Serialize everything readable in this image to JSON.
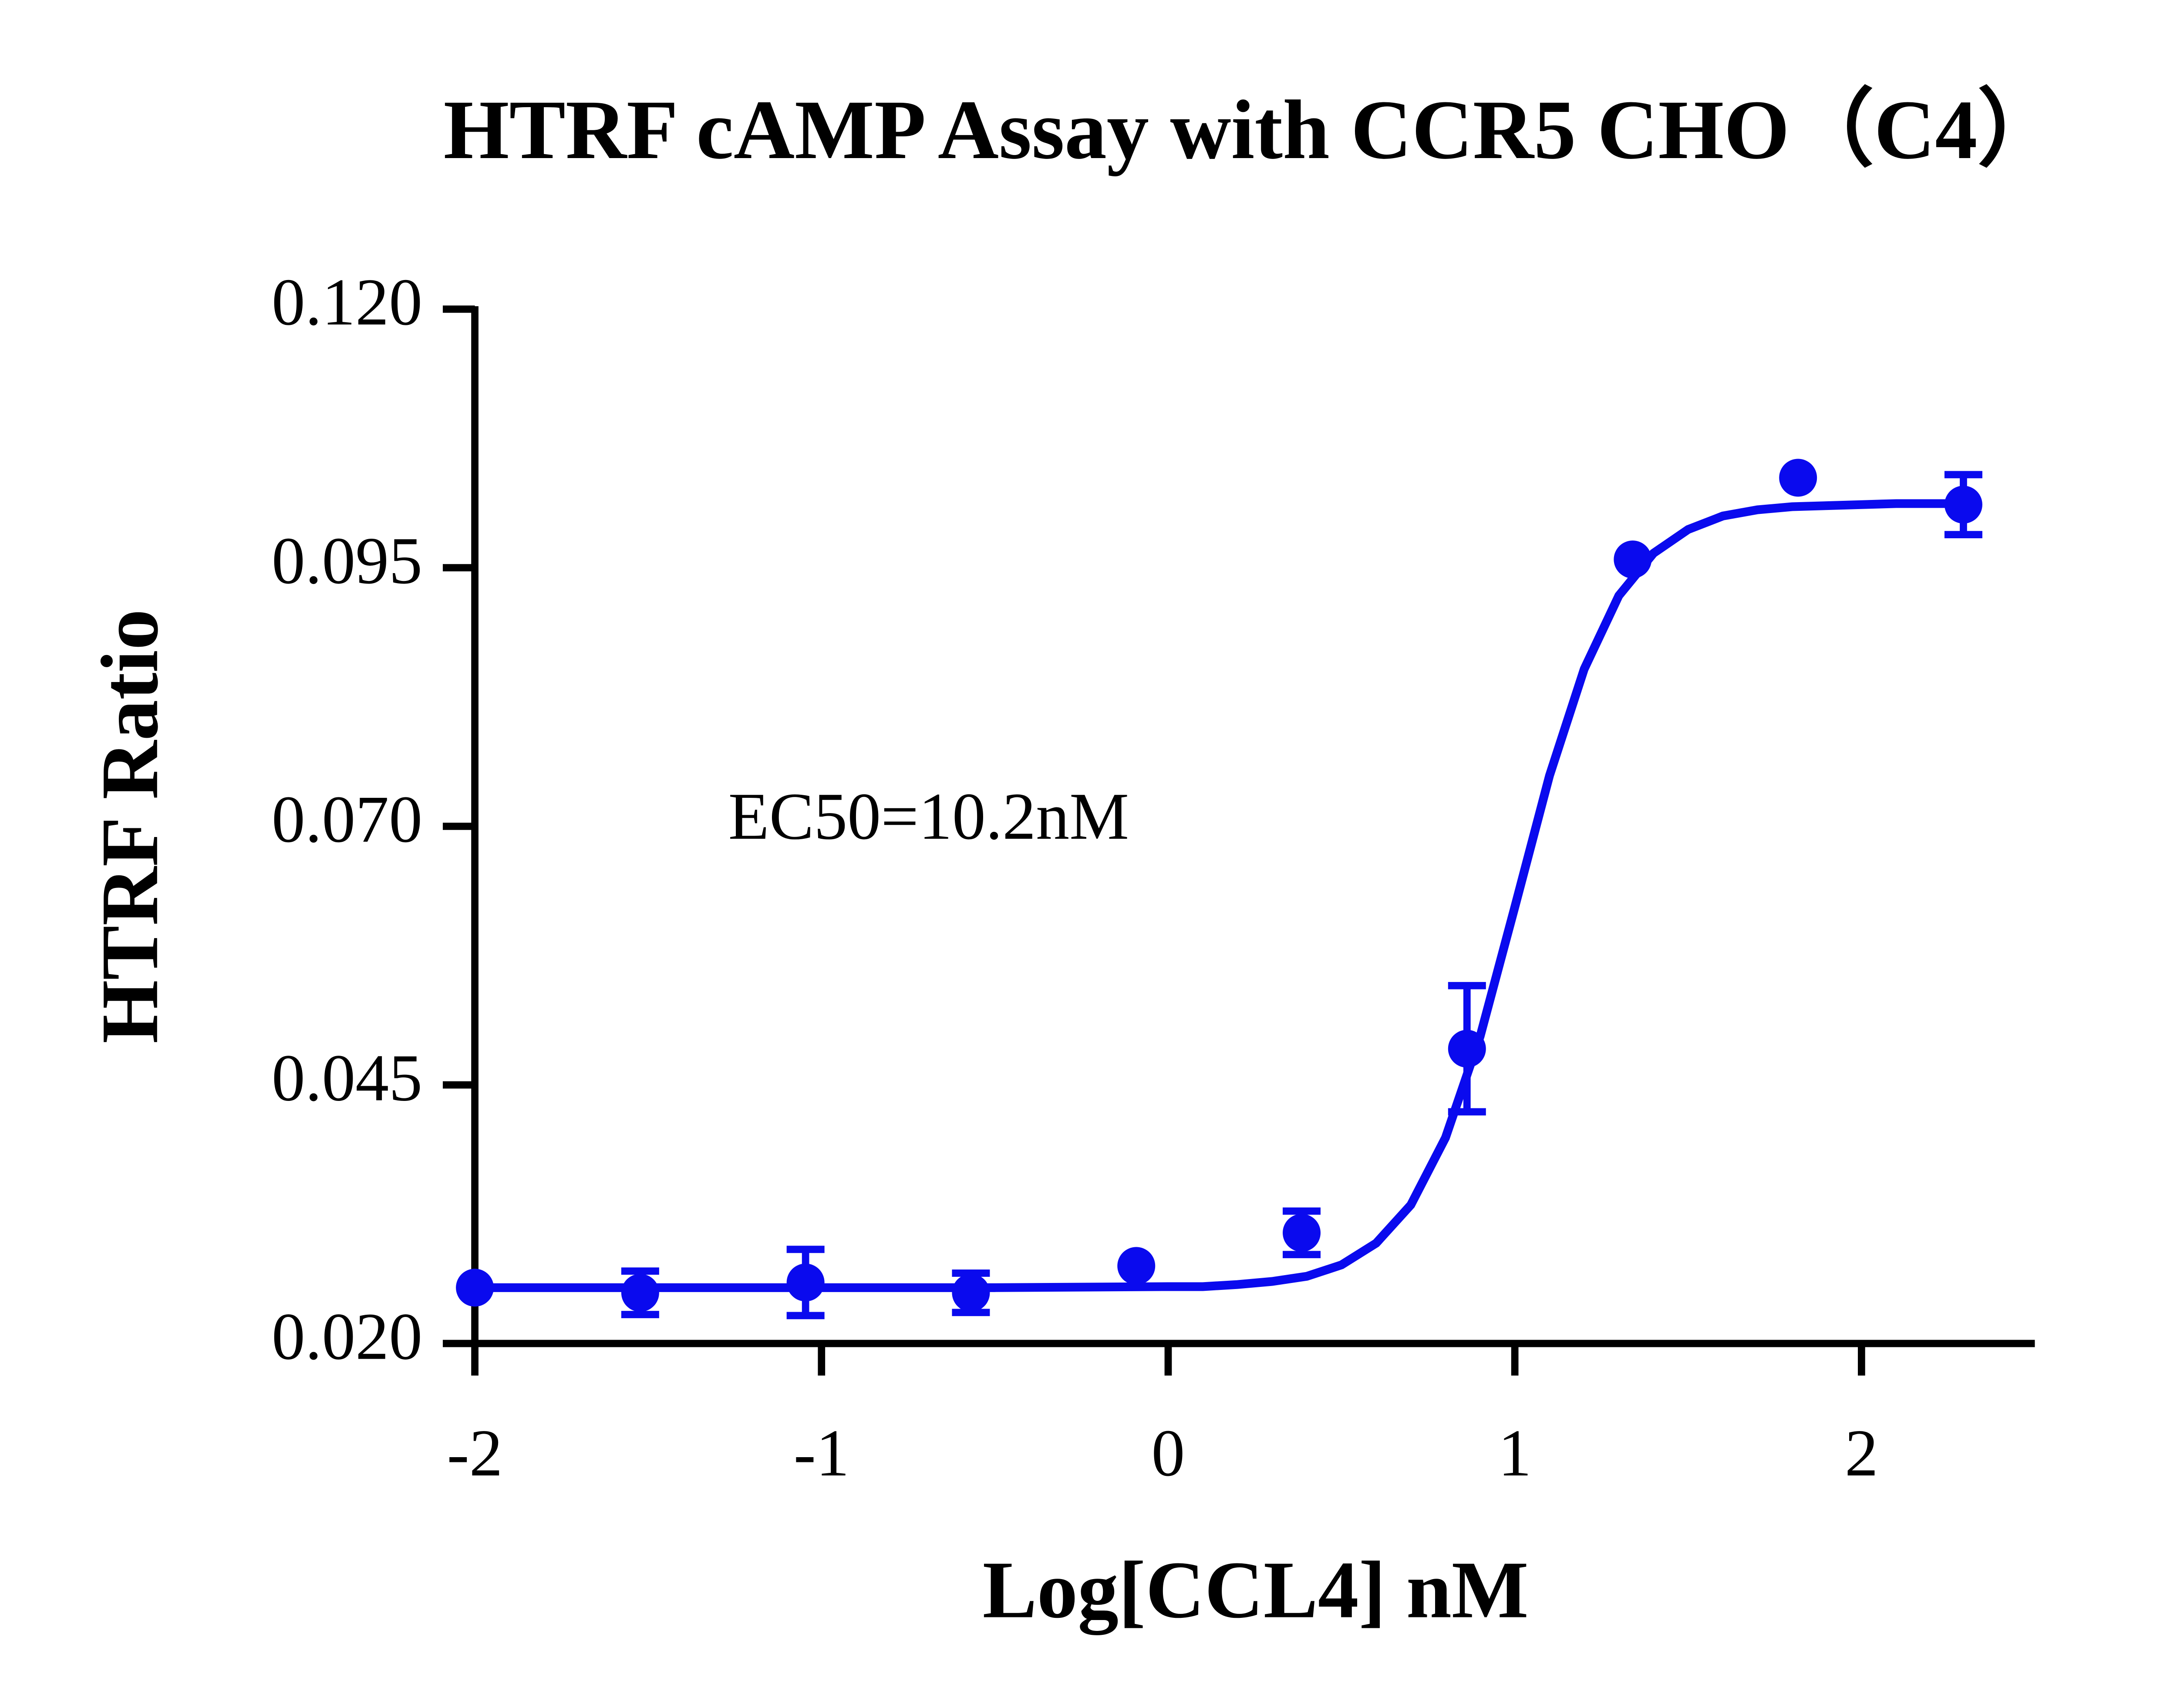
{
  "chart_data": {
    "type": "line",
    "title": "HTRF cAMP Assay with CCR5 CHO（C4）",
    "x_label": "Log[CCL4] nM",
    "y_label": "HTRF Ratio",
    "annotation": "EC50=10.2nM",
    "xlim": [
      -2,
      2.5
    ],
    "xticks": [
      -2,
      -1,
      0,
      1,
      2
    ],
    "ylim": [
      0.02,
      0.12
    ],
    "yticks": [
      {
        "value": 0.02,
        "label": "0.020"
      },
      {
        "value": 0.045,
        "label": "0.045"
      },
      {
        "value": 0.07,
        "label": "0.070"
      },
      {
        "value": 0.095,
        "label": "0.095"
      },
      {
        "value": 0.12,
        "label": "0.120"
      }
    ],
    "series": [
      {
        "color": "#0a0aee",
        "x": [
          -2.0,
          -1.523,
          -1.046,
          -0.569,
          -0.092,
          0.385,
          0.862,
          1.34,
          1.817,
          2.294
        ],
        "values": [
          0.0254,
          0.0249,
          0.0259,
          0.0249,
          0.0275,
          0.0307,
          0.0485,
          0.0958,
          0.1037,
          0.1011
        ],
        "errors": [
          null,
          0.0021,
          0.0032,
          0.0019,
          null,
          0.0021,
          0.0061,
          null,
          null,
          0.0029
        ]
      },
      {
        "color": "#0a0aee",
        "x": [
          -2.0,
          -1.0,
          -0.5,
          0.0,
          0.1,
          0.2,
          0.3,
          0.4,
          0.5,
          0.6,
          0.7,
          0.8,
          0.9,
          1.0,
          1.1,
          1.2,
          1.3,
          1.4,
          1.5,
          1.6,
          1.7,
          1.8,
          1.9,
          2.0,
          2.1,
          2.2,
          2.3
        ],
        "values": [
          0.0254,
          0.0254,
          0.0254,
          0.0255,
          0.0255,
          0.0257,
          0.026,
          0.0265,
          0.0276,
          0.0297,
          0.0334,
          0.0399,
          0.0497,
          0.0622,
          0.0749,
          0.0852,
          0.0923,
          0.0964,
          0.0987,
          0.1,
          0.1006,
          0.1009,
          0.101,
          0.1011,
          0.1012,
          0.1012,
          0.1012
        ]
      }
    ]
  }
}
